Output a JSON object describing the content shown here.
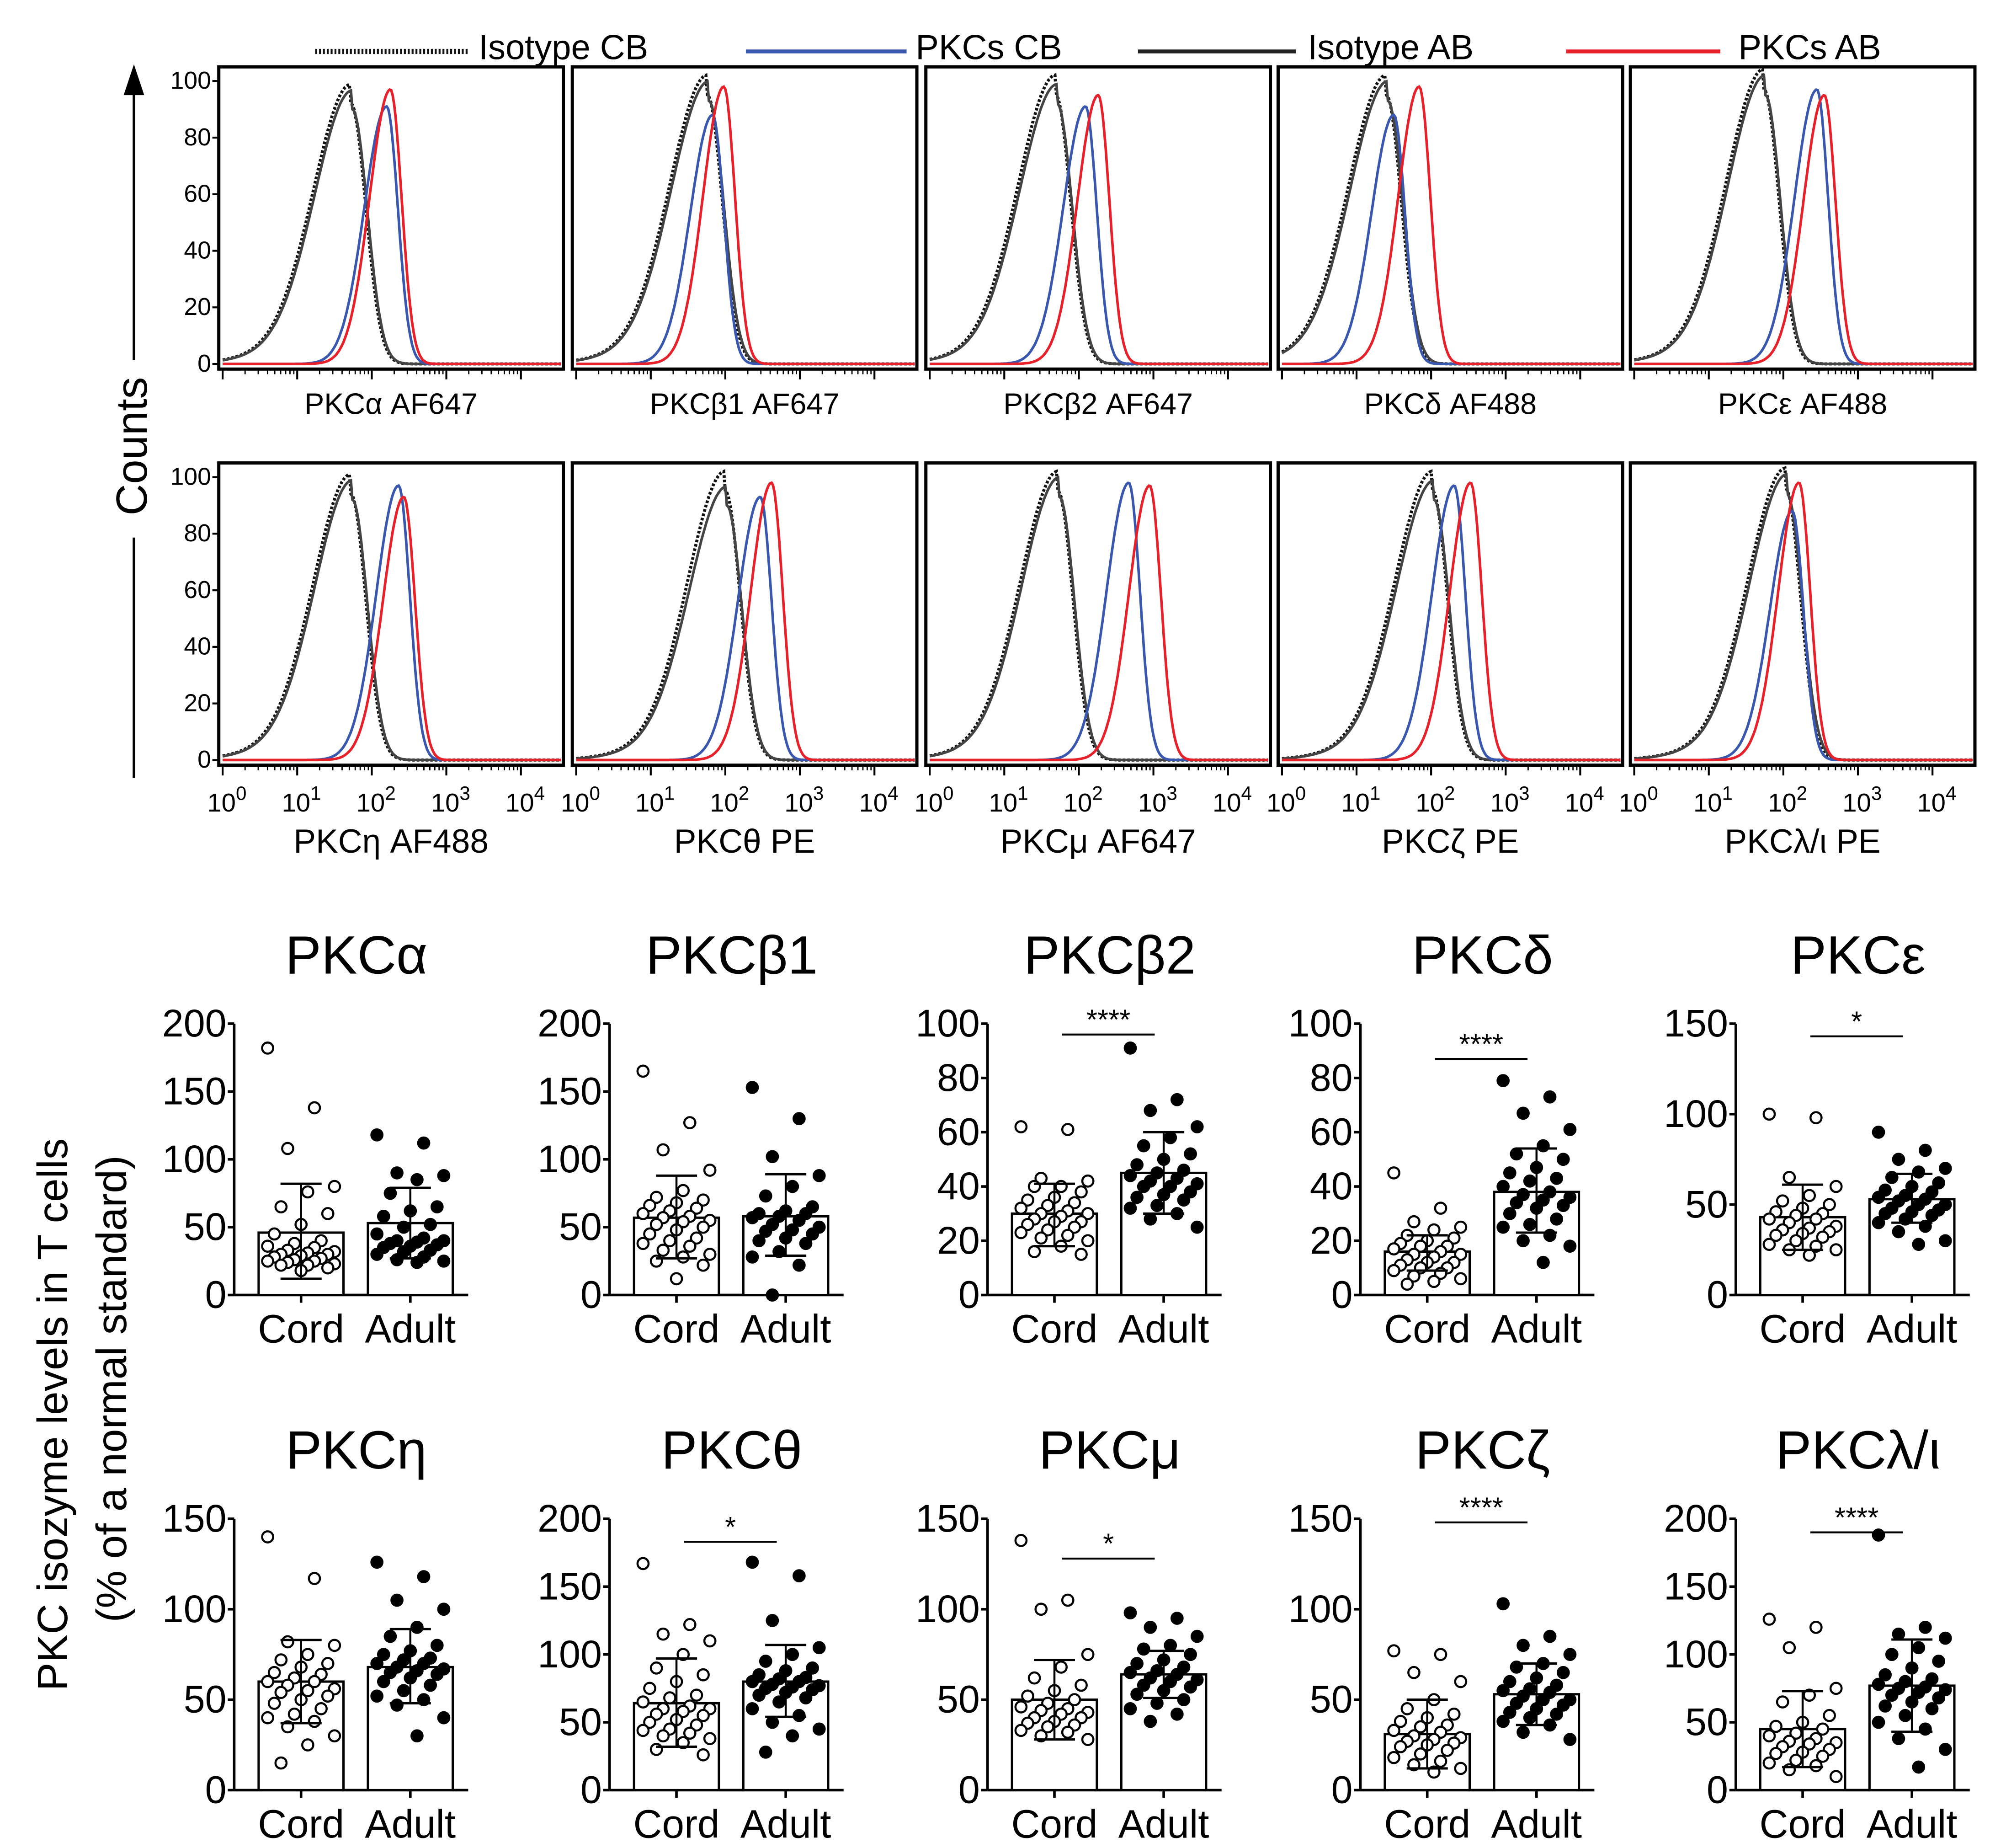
{
  "legend": [
    {
      "label": "Isotype CB",
      "color": "#111111",
      "style": "dotted"
    },
    {
      "label": "PKCs CB",
      "color": "#3a57b0",
      "style": "solid"
    },
    {
      "label": "Isotype AB",
      "color": "#222222",
      "style": "solid"
    },
    {
      "label": "PKCs AB",
      "color": "#e8202a",
      "style": "solid"
    }
  ],
  "hist_ylabel": "Counts",
  "hist_yticks": [
    "0",
    "20",
    "40",
    "60",
    "80",
    "100"
  ],
  "hist_xtick_base": "10",
  "hist_xtick_exps": [
    "0",
    "1",
    "2",
    "3",
    "4"
  ],
  "bar_ylabel_line1": "PKC isozyme levels in T cells",
  "bar_ylabel_line2": "(% of a normal standard)",
  "bar_categories": [
    "Cord",
    "Adult"
  ],
  "chart_data": [
    {
      "type": "line",
      "group": "histogram",
      "xlabel": "PKCα AF647",
      "xscale": "log",
      "ylim": [
        0,
        100
      ],
      "series_peaks": {
        "iso_cb": [
          1.72,
          92
        ],
        "pkc_cb": [
          2.2,
          91
        ],
        "iso_ab": [
          1.74,
          90
        ],
        "pkc_ab": [
          2.25,
          97
        ]
      }
    },
    {
      "type": "line",
      "group": "histogram",
      "xlabel": "PKCβ1 AF647",
      "xscale": "log",
      "ylim": [
        0,
        100
      ],
      "series_peaks": {
        "iso_cb": [
          1.76,
          95
        ],
        "pkc_cb": [
          1.83,
          88
        ],
        "iso_ab": [
          1.78,
          93
        ],
        "pkc_ab": [
          1.98,
          98
        ]
      }
    },
    {
      "type": "line",
      "group": "histogram",
      "xlabel": "PKCβ2 AF647",
      "xscale": "log",
      "ylim": [
        0,
        100
      ],
      "series_peaks": {
        "iso_cb": [
          1.69,
          95
        ],
        "pkc_cb": [
          2.09,
          91
        ],
        "iso_ab": [
          1.71,
          92
        ],
        "pkc_ab": [
          2.26,
          95
        ]
      }
    },
    {
      "type": "line",
      "group": "histogram",
      "xlabel": "PKCδ AF488",
      "xscale": "log",
      "ylim": [
        0,
        100
      ],
      "series_peaks": {
        "iso_cb": [
          1.4,
          95
        ],
        "pkc_cb": [
          1.5,
          88
        ],
        "iso_ab": [
          1.42,
          93
        ],
        "pkc_ab": [
          1.84,
          98
        ]
      }
    },
    {
      "type": "line",
      "group": "histogram",
      "xlabel": "PKCε AF488",
      "xscale": "log",
      "ylim": [
        0,
        100
      ],
      "series_peaks": {
        "iso_cb": [
          1.74,
          97
        ],
        "pkc_cb": [
          2.45,
          97
        ],
        "iso_ab": [
          1.76,
          95
        ],
        "pkc_ab": [
          2.55,
          95
        ]
      }
    },
    {
      "type": "line",
      "group": "histogram",
      "xlabel": "PKCη AF488",
      "xscale": "log",
      "ylim": [
        0,
        100
      ],
      "series_peaks": {
        "iso_cb": [
          1.72,
          94
        ],
        "pkc_cb": [
          2.36,
          97
        ],
        "iso_ab": [
          1.74,
          92
        ],
        "pkc_ab": [
          2.43,
          93
        ]
      }
    },
    {
      "type": "line",
      "group": "histogram",
      "xlabel": "PKCθ PE",
      "xscale": "log",
      "ylim": [
        0,
        100
      ],
      "series_peaks": {
        "iso_cb": [
          2.0,
          95
        ],
        "pkc_cb": [
          2.47,
          93
        ],
        "iso_ab": [
          2.02,
          90
        ],
        "pkc_ab": [
          2.62,
          98
        ]
      }
    },
    {
      "type": "line",
      "group": "histogram",
      "xlabel": "PKCμ AF647",
      "xscale": "log",
      "ylim": [
        0,
        100
      ],
      "series_peaks": {
        "iso_cb": [
          1.72,
          95
        ],
        "pkc_cb": [
          2.67,
          98
        ],
        "iso_ab": [
          1.74,
          93
        ],
        "pkc_ab": [
          2.95,
          97
        ]
      }
    },
    {
      "type": "line",
      "group": "histogram",
      "xlabel": "PKCζ PE",
      "xscale": "log",
      "ylim": [
        0,
        100
      ],
      "series_peaks": {
        "iso_cb": [
          2.02,
          95
        ],
        "pkc_cb": [
          2.31,
          97
        ],
        "iso_ab": [
          2.04,
          92
        ],
        "pkc_ab": [
          2.53,
          98
        ]
      }
    },
    {
      "type": "line",
      "group": "histogram",
      "xlabel": "PKCλ/ι PE",
      "xscale": "log",
      "ylim": [
        0,
        100
      ],
      "series_peaks": {
        "iso_cb": [
          2.03,
          96
        ],
        "pkc_cb": [
          2.12,
          88
        ],
        "iso_ab": [
          2.05,
          94
        ],
        "pkc_ab": [
          2.21,
          98
        ]
      }
    },
    {
      "type": "bar",
      "group": "bars",
      "title": "PKCα",
      "ylim": [
        0,
        200
      ],
      "yticks": [
        "0",
        "50",
        "100",
        "150",
        "200"
      ],
      "sig": null,
      "sig_y": null,
      "cord": {
        "mean": 46,
        "err": [
          12,
          82
        ],
        "points": [
          182,
          138,
          108,
          80,
          76,
          65,
          60,
          52,
          45,
          40,
          38,
          36,
          35,
          33,
          32,
          31,
          30,
          30,
          29,
          28,
          27,
          26,
          25,
          25,
          24,
          23,
          22,
          22,
          20,
          18
        ]
      },
      "adult": {
        "mean": 53,
        "err": [
          27,
          79
        ],
        "points": [
          118,
          112,
          90,
          88,
          85,
          75,
          65,
          62,
          58,
          52,
          50,
          45,
          42,
          40,
          40,
          39,
          38,
          37,
          36,
          35,
          33,
          32,
          30,
          28,
          26,
          25,
          24
        ]
      }
    },
    {
      "type": "bar",
      "group": "bars",
      "title": "PKCβ1",
      "ylim": [
        0,
        200
      ],
      "yticks": [
        "0",
        "50",
        "100",
        "150",
        "200"
      ],
      "sig": null,
      "sig_y": null,
      "cord": {
        "mean": 57,
        "err": [
          27,
          88
        ],
        "points": [
          165,
          127,
          107,
          92,
          77,
          72,
          70,
          68,
          66,
          64,
          62,
          60,
          58,
          57,
          55,
          54,
          52,
          50,
          48,
          45,
          42,
          40,
          38,
          36,
          33,
          30,
          28,
          25,
          22,
          12
        ]
      },
      "adult": {
        "mean": 58,
        "err": [
          29,
          89
        ],
        "points": [
          153,
          130,
          102,
          88,
          80,
          73,
          65,
          62,
          60,
          60,
          58,
          57,
          55,
          52,
          50,
          48,
          47,
          45,
          42,
          40,
          38,
          32,
          28,
          22,
          0
        ]
      }
    },
    {
      "type": "bar",
      "group": "bars",
      "title": "PKCβ2",
      "ylim": [
        0,
        100
      ],
      "yticks": [
        "0",
        "20",
        "40",
        "60",
        "80",
        "100"
      ],
      "sig": "****",
      "sig_y": 96,
      "cord": {
        "mean": 30,
        "err": [
          18,
          41
        ],
        "points": [
          62,
          61,
          43,
          42,
          40,
          40,
          38,
          36,
          35,
          34,
          33,
          32,
          31,
          30,
          30,
          29,
          28,
          27,
          27,
          26,
          25,
          24,
          23,
          22,
          21,
          20,
          18,
          16,
          15
        ]
      },
      "adult": {
        "mean": 45,
        "err": [
          30,
          60
        ],
        "points": [
          91,
          72,
          68,
          62,
          58,
          55,
          52,
          50,
          48,
          46,
          45,
          44,
          43,
          42,
          41,
          40,
          40,
          38,
          37,
          36,
          35,
          33,
          32,
          30,
          28,
          25
        ]
      }
    },
    {
      "type": "bar",
      "group": "bars",
      "title": "PKCδ",
      "ylim": [
        0,
        100
      ],
      "yticks": [
        "0",
        "20",
        "40",
        "60",
        "80",
        "100"
      ],
      "sig": "****",
      "sig_y": 87,
      "cord": {
        "mean": 16,
        "err": [
          9,
          22
        ],
        "points": [
          45,
          32,
          27,
          25,
          24,
          22,
          21,
          20,
          19,
          18,
          18,
          17,
          16,
          15,
          15,
          14,
          13,
          12,
          12,
          11,
          10,
          10,
          9,
          8,
          7,
          6,
          5,
          4
        ]
      },
      "adult": {
        "mean": 38,
        "err": [
          23,
          54
        ],
        "points": [
          79,
          73,
          67,
          61,
          55,
          52,
          50,
          47,
          45,
          43,
          42,
          40,
          38,
          37,
          36,
          35,
          34,
          33,
          32,
          30,
          28,
          26,
          25,
          22,
          20,
          18,
          12
        ]
      }
    },
    {
      "type": "bar",
      "group": "bars",
      "title": "PKCε",
      "ylim": [
        0,
        150
      ],
      "yticks": [
        "0",
        "50",
        "100",
        "150"
      ],
      "sig": "*",
      "sig_y": 143,
      "cord": {
        "mean": 43,
        "err": [
          25,
          61
        ],
        "points": [
          100,
          98,
          65,
          60,
          55,
          52,
          50,
          48,
          46,
          45,
          44,
          42,
          42,
          40,
          38,
          37,
          36,
          35,
          34,
          33,
          32,
          30,
          28,
          27,
          25,
          25,
          22
        ]
      },
      "adult": {
        "mean": 53,
        "err": [
          40,
          67
        ],
        "points": [
          90,
          80,
          75,
          70,
          68,
          65,
          62,
          60,
          58,
          57,
          55,
          54,
          53,
          52,
          50,
          50,
          48,
          47,
          46,
          45,
          44,
          42,
          40,
          38,
          35,
          30,
          28
        ]
      }
    },
    {
      "type": "bar",
      "group": "bars",
      "title": "PKCη",
      "ylim": [
        0,
        150
      ],
      "yticks": [
        "0",
        "50",
        "100",
        "150"
      ],
      "sig": null,
      "sig_y": null,
      "cord": {
        "mean": 60,
        "err": [
          37,
          83
        ],
        "points": [
          140,
          117,
          82,
          80,
          75,
          72,
          70,
          68,
          65,
          64,
          62,
          60,
          60,
          58,
          56,
          55,
          54,
          52,
          50,
          48,
          45,
          42,
          40,
          38,
          35,
          30,
          25,
          15
        ]
      },
      "adult": {
        "mean": 68,
        "err": [
          48,
          89
        ],
        "points": [
          126,
          118,
          105,
          100,
          90,
          85,
          80,
          77,
          75,
          73,
          72,
          70,
          70,
          68,
          67,
          66,
          65,
          64,
          62,
          60,
          58,
          55,
          52,
          50,
          47,
          40,
          30
        ]
      }
    },
    {
      "type": "bar",
      "group": "bars",
      "title": "PKCθ",
      "ylim": [
        0,
        200
      ],
      "yticks": [
        "0",
        "50",
        "100",
        "150",
        "200"
      ],
      "sig": "*",
      "sig_y": 183,
      "cord": {
        "mean": 64,
        "err": [
          32,
          97
        ],
        "points": [
          167,
          122,
          115,
          110,
          100,
          90,
          85,
          80,
          75,
          70,
          68,
          65,
          62,
          60,
          60,
          58,
          56,
          55,
          52,
          50,
          48,
          45,
          44,
          42,
          40,
          38,
          35,
          30,
          26
        ]
      },
      "adult": {
        "mean": 80,
        "err": [
          54,
          107
        ],
        "points": [
          168,
          158,
          125,
          105,
          100,
          95,
          90,
          88,
          85,
          83,
          82,
          80,
          80,
          78,
          77,
          76,
          75,
          74,
          72,
          70,
          68,
          65,
          60,
          55,
          50,
          45,
          40,
          28
        ]
      }
    },
    {
      "type": "bar",
      "group": "bars",
      "title": "PKCμ",
      "ylim": [
        0,
        150
      ],
      "yticks": [
        "0",
        "50",
        "100",
        "150"
      ],
      "sig": "*",
      "sig_y": 128,
      "cord": {
        "mean": 50,
        "err": [
          28,
          72
        ],
        "points": [
          138,
          105,
          100,
          75,
          68,
          62,
          58,
          55,
          52,
          50,
          48,
          46,
          45,
          44,
          43,
          42,
          40,
          40,
          38,
          37,
          36,
          35,
          33,
          32,
          30,
          28
        ]
      },
      "adult": {
        "mean": 64,
        "err": [
          51,
          77
        ],
        "points": [
          98,
          95,
          90,
          85,
          80,
          78,
          75,
          72,
          70,
          68,
          66,
          65,
          64,
          62,
          61,
          60,
          58,
          57,
          55,
          53,
          50,
          48,
          45,
          42,
          38
        ]
      }
    },
    {
      "type": "bar",
      "group": "bars",
      "title": "PKCζ",
      "ylim": [
        0,
        150
      ],
      "yticks": [
        "0",
        "50",
        "100",
        "150"
      ],
      "sig": "****",
      "sig_y": 148,
      "cord": {
        "mean": 31,
        "err": [
          12,
          50
        ],
        "points": [
          77,
          75,
          65,
          60,
          50,
          45,
          42,
          40,
          38,
          36,
          35,
          33,
          32,
          30,
          29,
          28,
          27,
          26,
          25,
          24,
          22,
          20,
          18,
          16,
          14,
          12,
          10
        ]
      },
      "adult": {
        "mean": 53,
        "err": [
          36,
          70
        ],
        "points": [
          103,
          85,
          80,
          75,
          70,
          68,
          65,
          62,
          60,
          58,
          56,
          55,
          54,
          52,
          50,
          50,
          48,
          47,
          45,
          43,
          42,
          40,
          38,
          36,
          32,
          28
        ]
      }
    },
    {
      "type": "bar",
      "group": "bars",
      "title": "PKCλ/ι",
      "ylim": [
        0,
        200
      ],
      "yticks": [
        "0",
        "50",
        "100",
        "150",
        "200"
      ],
      "sig": "****",
      "sig_y": 190,
      "cord": {
        "mean": 45,
        "err": [
          17,
          73
        ],
        "points": [
          126,
          120,
          105,
          75,
          70,
          65,
          55,
          50,
          47,
          45,
          42,
          40,
          38,
          36,
          35,
          34,
          32,
          30,
          28,
          27,
          25,
          22,
          20,
          18,
          15,
          10
        ]
      },
      "adult": {
        "mean": 77,
        "err": [
          43,
          111
        ],
        "points": [
          188,
          120,
          115,
          112,
          105,
          100,
          95,
          90,
          85,
          82,
          80,
          78,
          76,
          75,
          74,
          72,
          70,
          68,
          65,
          62,
          60,
          55,
          50,
          45,
          38,
          30,
          17
        ]
      }
    }
  ]
}
